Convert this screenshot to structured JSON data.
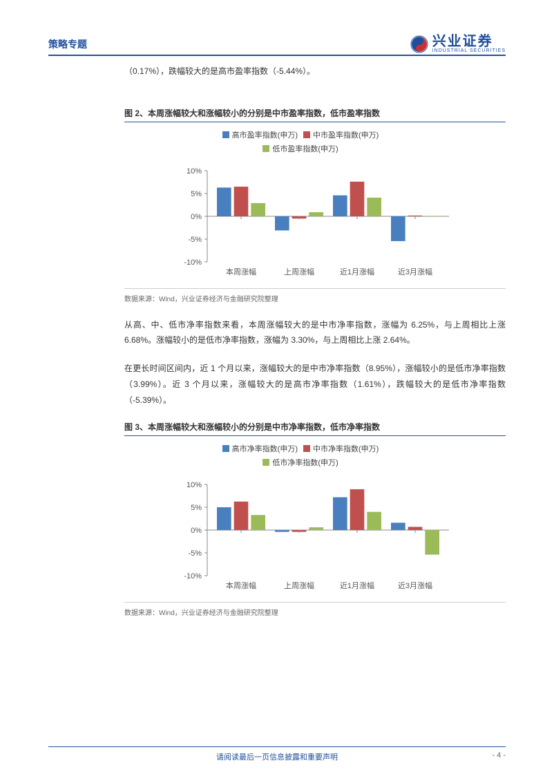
{
  "header": {
    "category": "策略专题",
    "logo_cn": "兴业证券",
    "logo_en": "INDUSTRIAL SECURITIES"
  },
  "intro": "（0.17%），跌幅较大的是高市盈率指数（-5.44%）。",
  "chart2": {
    "title": "图 2、本周涨幅较大和涨幅较小的分别是中市盈率指数，低市盈率指数",
    "type": "bar",
    "legend": [
      {
        "label": "高市盈率指数(申万)",
        "color": "#4a7fbf"
      },
      {
        "label": "中市盈率指数(申万)",
        "color": "#c0504d"
      },
      {
        "label": "低市盈率指数(申万)",
        "color": "#9bbb59"
      }
    ],
    "categories": [
      "本周涨幅",
      "上周涨幅",
      "近1月涨幅",
      "近3月涨幅"
    ],
    "series": [
      {
        "color": "#4a7fbf",
        "values": [
          6.3,
          -3.1,
          4.6,
          -5.44
        ]
      },
      {
        "color": "#c0504d",
        "values": [
          6.5,
          -0.5,
          7.6,
          0.17
        ]
      },
      {
        "color": "#9bbb59",
        "values": [
          2.9,
          0.9,
          4.1,
          0.1
        ]
      }
    ],
    "ylim": [
      -10,
      10
    ],
    "yticks": [
      -10,
      -5,
      0,
      5,
      10
    ],
    "ytick_labels": [
      "-10%",
      "-5%",
      "0%",
      "5%",
      "10%"
    ],
    "source": "数据来源：Wind，兴业证券经济与金融研究院整理",
    "axis_color": "#888888",
    "label_color": "#555555",
    "label_fontsize": 11,
    "bar_gap": 4,
    "group_width": 70
  },
  "para1": "从高、中、低市净率指数来看，本周涨幅较大的是中市净率指数，涨幅为 6.25%，与上周相比上涨 6.68%。涨幅较小的是低市净率指数，涨幅为 3.30%，与上周相比上涨 2.64%。",
  "para2": "在更长时间区间内，近 1 个月以来，涨幅较大的是中市净率指数（8.95%），涨幅较小的是低市净率指数（3.99%）。近 3 个月以来，涨幅较大的是高市净率指数（1.61%），跌幅较大的是低市净率指数（-5.39%）。",
  "chart3": {
    "title": "图 3、本周涨幅较大和涨幅较小的分别是中市净率指数，低市净率指数",
    "type": "bar",
    "legend": [
      {
        "label": "高市净率指数(申万)",
        "color": "#4a7fbf"
      },
      {
        "label": "中市净率指数(申万)",
        "color": "#c0504d"
      },
      {
        "label": "低市净率指数(申万)",
        "color": "#9bbb59"
      }
    ],
    "categories": [
      "本周涨幅",
      "上周涨幅",
      "近1月涨幅",
      "近3月涨幅"
    ],
    "series": [
      {
        "color": "#4a7fbf",
        "values": [
          5.0,
          -0.4,
          7.2,
          1.61
        ]
      },
      {
        "color": "#c0504d",
        "values": [
          6.25,
          -0.4,
          8.95,
          0.7
        ]
      },
      {
        "color": "#9bbb59",
        "values": [
          3.3,
          0.6,
          3.99,
          -5.39
        ]
      }
    ],
    "ylim": [
      -10,
      10
    ],
    "yticks": [
      -10,
      -5,
      0,
      5,
      10
    ],
    "ytick_labels": [
      "-10%",
      "-5%",
      "0%",
      "5%",
      "10%"
    ],
    "source": "数据来源：Wind，兴业证券经济与金融研究院整理",
    "axis_color": "#888888",
    "label_color": "#555555",
    "label_fontsize": 11,
    "bar_gap": 4,
    "group_width": 70
  },
  "footer": {
    "text": "请阅读最后一页信息披露和重要声明",
    "page": "- 4 -"
  }
}
